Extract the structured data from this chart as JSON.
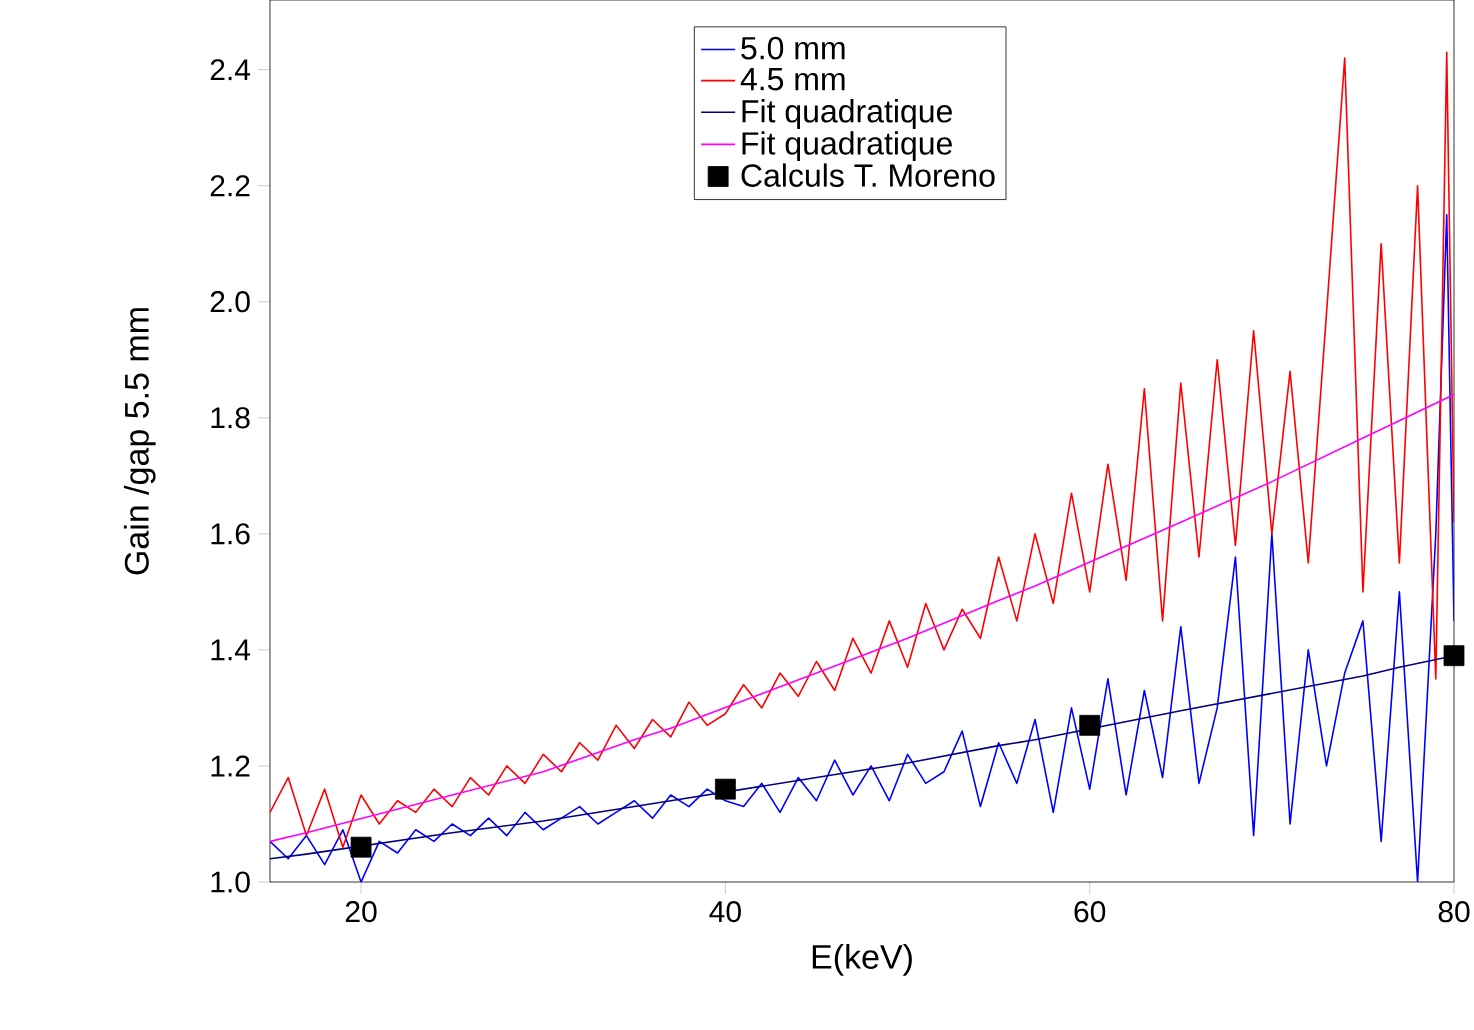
{
  "chart_data": {
    "type": "line",
    "xlabel": "E(keV)",
    "ylabel": "Gain /gap 5.5 mm",
    "xlim": [
      15,
      80
    ],
    "ylim": [
      1.0,
      2.52
    ],
    "xticks": [
      20,
      40,
      60,
      80
    ],
    "yticks": [
      {
        "value": 1.0,
        "label": "1.0"
      },
      1.2,
      1.4,
      1.6,
      1.8,
      {
        "value": 2.0,
        "label": "2.0"
      },
      2.2,
      2.4
    ],
    "legend": "top",
    "series": [
      {
        "name": "5.0 mm",
        "color": "#0000ff",
        "x": [
          15,
          16,
          17,
          18,
          19,
          20,
          21,
          22,
          23,
          24,
          25,
          26,
          27,
          28,
          29,
          30,
          31,
          32,
          33,
          34,
          35,
          36,
          37,
          38,
          39,
          40,
          41,
          42,
          43,
          44,
          45,
          46,
          47,
          48,
          49,
          50,
          51,
          52,
          53,
          54,
          55,
          56,
          57,
          58,
          59,
          60,
          61,
          62,
          63,
          64,
          65,
          66,
          67,
          68,
          69,
          70,
          71,
          72,
          73,
          74,
          75,
          76,
          77,
          78,
          79,
          79.6,
          80
        ],
        "values": [
          1.07,
          1.04,
          1.08,
          1.03,
          1.09,
          1.0,
          1.07,
          1.05,
          1.09,
          1.07,
          1.1,
          1.08,
          1.11,
          1.08,
          1.12,
          1.09,
          1.11,
          1.13,
          1.1,
          1.12,
          1.14,
          1.11,
          1.15,
          1.13,
          1.16,
          1.14,
          1.13,
          1.17,
          1.12,
          1.18,
          1.14,
          1.21,
          1.15,
          1.2,
          1.14,
          1.22,
          1.17,
          1.19,
          1.26,
          1.13,
          1.24,
          1.17,
          1.28,
          1.12,
          1.3,
          1.16,
          1.35,
          1.15,
          1.33,
          1.18,
          1.44,
          1.17,
          1.3,
          1.56,
          1.08,
          1.6,
          1.1,
          1.4,
          1.2,
          1.36,
          1.45,
          1.07,
          1.5,
          1.0,
          1.6,
          2.15,
          1.45
        ]
      },
      {
        "name": "4.5 mm",
        "color": "#ff0000",
        "x": [
          15,
          16,
          17,
          18,
          19,
          20,
          21,
          22,
          23,
          24,
          25,
          26,
          27,
          28,
          29,
          30,
          31,
          32,
          33,
          34,
          35,
          36,
          37,
          38,
          39,
          40,
          41,
          42,
          43,
          44,
          45,
          46,
          47,
          48,
          49,
          50,
          51,
          52,
          53,
          54,
          55,
          56,
          57,
          58,
          59,
          60,
          61,
          62,
          63,
          64,
          65,
          66,
          67,
          68,
          69,
          70,
          71,
          72,
          73,
          74,
          75,
          76,
          77,
          78,
          79,
          79.6,
          80
        ],
        "values": [
          1.12,
          1.18,
          1.08,
          1.16,
          1.06,
          1.15,
          1.1,
          1.14,
          1.12,
          1.16,
          1.13,
          1.18,
          1.15,
          1.2,
          1.17,
          1.22,
          1.19,
          1.24,
          1.21,
          1.27,
          1.23,
          1.28,
          1.25,
          1.31,
          1.27,
          1.29,
          1.34,
          1.3,
          1.36,
          1.32,
          1.38,
          1.33,
          1.42,
          1.36,
          1.45,
          1.37,
          1.48,
          1.4,
          1.47,
          1.42,
          1.56,
          1.45,
          1.6,
          1.48,
          1.67,
          1.5,
          1.72,
          1.52,
          1.85,
          1.45,
          1.86,
          1.56,
          1.9,
          1.58,
          1.95,
          1.6,
          1.88,
          1.55,
          1.98,
          2.42,
          1.5,
          2.1,
          1.55,
          2.2,
          1.35,
          2.43,
          1.62
        ]
      },
      {
        "name": "Fit quadratique",
        "color": "#000080",
        "x": [
          15,
          17,
          25,
          30,
          35,
          37,
          45,
          50,
          55,
          57,
          65,
          70,
          75,
          77,
          80
        ],
        "values": [
          1.04,
          1.048,
          1.085,
          1.105,
          1.13,
          1.14,
          1.18,
          1.205,
          1.235,
          1.245,
          1.295,
          1.325,
          1.355,
          1.37,
          1.39
        ]
      },
      {
        "name": "Fit quadratique",
        "color": "#ff00ff",
        "x": [
          15,
          17,
          25,
          30,
          35,
          37,
          45,
          50,
          55,
          57,
          65,
          70,
          75,
          77,
          80
        ],
        "values": [
          1.07,
          1.085,
          1.15,
          1.19,
          1.245,
          1.265,
          1.36,
          1.42,
          1.485,
          1.51,
          1.62,
          1.69,
          1.765,
          1.795,
          1.84
        ]
      },
      {
        "name": "Calculs T. Moreno",
        "type": "scatter",
        "marker": "square",
        "color": "#000000",
        "x": [
          20,
          40,
          60,
          80
        ],
        "values": [
          1.06,
          1.16,
          1.27,
          1.39
        ]
      }
    ]
  }
}
